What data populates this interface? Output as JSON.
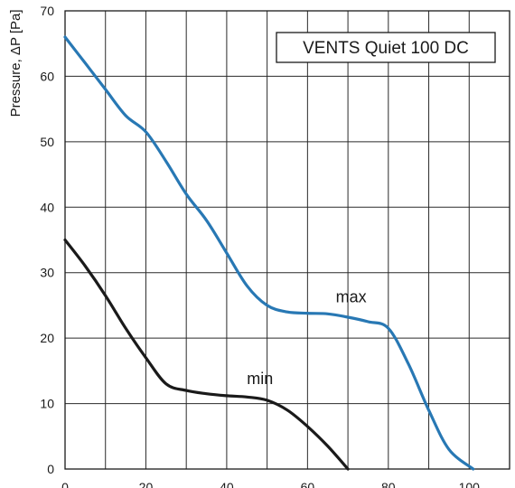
{
  "chart_data": {
    "type": "line",
    "title": "VENTS Quiet 100 DC",
    "xlabel": "",
    "ylabel": "Pressure, ΔP [Pa]",
    "xlim": [
      0,
      110
    ],
    "ylim": [
      0,
      70
    ],
    "x_ticks": [
      "0",
      "20",
      "40",
      "60",
      "80",
      "100"
    ],
    "y_ticks": [
      "0",
      "10",
      "20",
      "30",
      "40",
      "50",
      "60",
      "70"
    ],
    "grid": true,
    "legend": "none",
    "series": [
      {
        "name": "max",
        "color": "#2878b4",
        "x": [
          0,
          5,
          10,
          15,
          20,
          25,
          30,
          35,
          40,
          45,
          50,
          55,
          60,
          65,
          70,
          75,
          80,
          85,
          90,
          95,
          101
        ],
        "y": [
          66,
          62,
          58,
          54,
          51.5,
          47,
          42,
          38,
          33,
          28,
          25,
          24,
          23.8,
          23.7,
          23.2,
          22.5,
          21.5,
          16,
          9,
          3,
          0
        ]
      },
      {
        "name": "min",
        "color": "#1a1a1a",
        "x": [
          0,
          5,
          10,
          15,
          20,
          25,
          30,
          35,
          40,
          45,
          50,
          55,
          60,
          65,
          70
        ],
        "y": [
          35,
          31,
          26.5,
          21.5,
          17,
          13,
          12,
          11.5,
          11.2,
          11,
          10.5,
          9,
          6.5,
          3.5,
          0
        ]
      }
    ],
    "annotations": [
      {
        "text": "max",
        "x": 67,
        "y": 25.5
      },
      {
        "text": "min",
        "x": 45,
        "y": 13
      }
    ]
  }
}
